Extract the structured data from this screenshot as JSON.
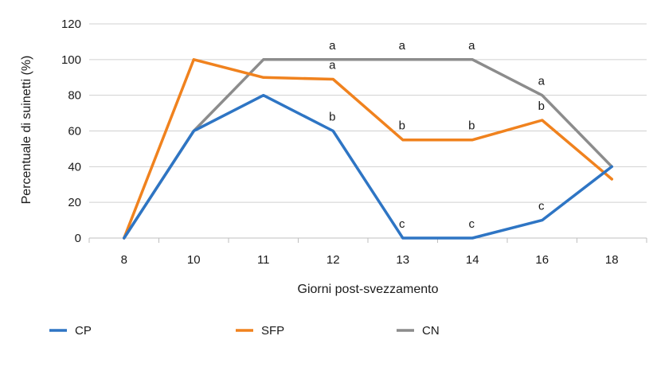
{
  "chart_data": {
    "type": "line",
    "title": "",
    "xlabel": "Giorni post-svezzamento",
    "ylabel": "Percentuale di suinetti (%)",
    "categories": [
      "8",
      "10",
      "11",
      "12",
      "13",
      "14",
      "16",
      "18"
    ],
    "ylim": [
      0,
      120
    ],
    "yticks": [
      "0",
      "20",
      "40",
      "60",
      "80",
      "100",
      "120"
    ],
    "grid": "horizontal",
    "legend_position": "bottom",
    "series": [
      {
        "name": "CP",
        "color": "#2e75c4",
        "values": [
          0,
          60,
          80,
          60,
          0,
          0,
          10,
          40
        ],
        "labels": [
          "",
          "",
          "",
          "b",
          "c",
          "c",
          "c",
          ""
        ]
      },
      {
        "name": "SFP",
        "color": "#f0821e",
        "values": [
          0,
          100,
          90,
          89,
          55,
          55,
          66,
          33
        ],
        "labels": [
          "",
          "",
          "",
          "a",
          "b",
          "b",
          "b",
          ""
        ]
      },
      {
        "name": "CN",
        "color": "#8c8c8c",
        "values": [
          0,
          60,
          100,
          100,
          100,
          100,
          80,
          40
        ],
        "labels": [
          "",
          "",
          "",
          "a",
          "a",
          "a",
          "a",
          ""
        ]
      }
    ]
  }
}
